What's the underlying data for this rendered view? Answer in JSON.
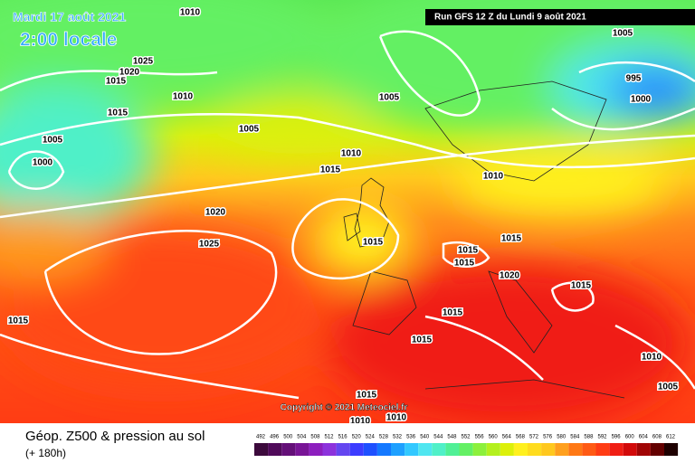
{
  "header": {
    "date": "Mardi 17 août 2021",
    "time": "2:00 locale",
    "run": "Run GFS 12 Z du Lundi 9 août 2021"
  },
  "isobars": [
    "1010",
    "1025",
    "1020",
    "1015",
    "1010",
    "1015",
    "1005",
    "1000",
    "1005",
    "1005",
    "1010",
    "1015",
    "1005",
    "995",
    "1000",
    "1010",
    "1020",
    "1025",
    "1015",
    "1015",
    "1015",
    "1015",
    "1020",
    "1015",
    "1015",
    "1015",
    "1015",
    "1010",
    "1005",
    "1015",
    "1010",
    "1010"
  ],
  "copyright": "Copyright © 2021 Meteociel.fr",
  "legend": {
    "title": "Géop. Z500 & pression au sol",
    "lead": "(+ 180h)",
    "scale": [
      492,
      496,
      500,
      504,
      508,
      512,
      516,
      520,
      524,
      528,
      532,
      536,
      540,
      544,
      548,
      552,
      556,
      560,
      564,
      568,
      572,
      576,
      580,
      584,
      588,
      592,
      596,
      600,
      604,
      608,
      612
    ],
    "colors": [
      "#3c0a3c",
      "#500a5a",
      "#640f78",
      "#781496",
      "#8c1ebe",
      "#8c32dc",
      "#6446f0",
      "#3c3cff",
      "#1e50ff",
      "#1478ff",
      "#1ea0ff",
      "#32c8ff",
      "#50e6f0",
      "#50f0c8",
      "#50f096",
      "#64f064",
      "#8cf03c",
      "#b4f01e",
      "#dcf00a",
      "#fff01e",
      "#ffdc1e",
      "#ffc81e",
      "#ffa01e",
      "#ff7814",
      "#ff5a14",
      "#ff3c14",
      "#f01e14",
      "#d20a0a",
      "#a00505",
      "#640000",
      "#1e0000"
    ]
  }
}
